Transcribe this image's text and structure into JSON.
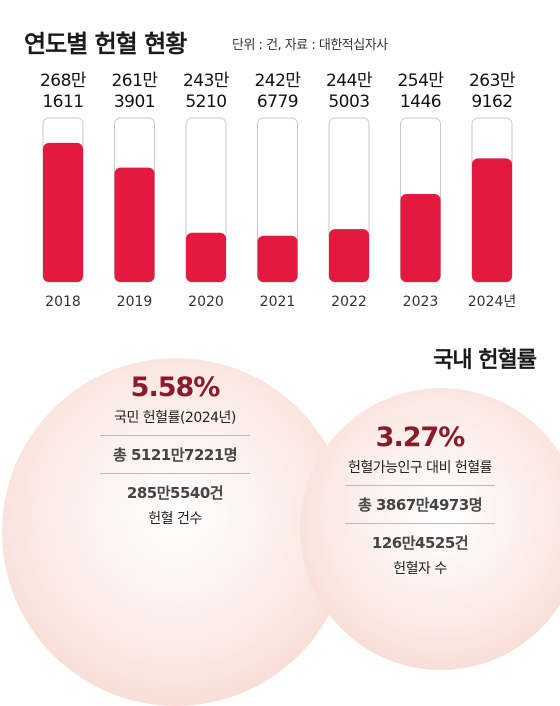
{
  "header": {
    "title": "연도별 헌혈 현황",
    "unit_note": "단위 : 건, 자료 : 대한적십자사"
  },
  "chart_data": {
    "type": "bar",
    "categories": [
      "2018",
      "2019",
      "2020",
      "2021",
      "2022",
      "2023",
      "2024년"
    ],
    "values": [
      2681611,
      2613901,
      2435210,
      2426779,
      2445003,
      2541446,
      2639162
    ],
    "value_labels": [
      [
        "268만",
        "1611"
      ],
      [
        "261만",
        "3901"
      ],
      [
        "243만",
        "5210"
      ],
      [
        "242만",
        "6779"
      ],
      [
        "244만",
        "5003"
      ],
      [
        "254만",
        "1446"
      ],
      [
        "263만",
        "9162"
      ]
    ],
    "bar_color": "#e3193f",
    "empty_color": "#ffffff",
    "outline_color": "#c9c9c9"
  },
  "section": {
    "title": "국내 헌혈률"
  },
  "stats": {
    "national": {
      "rate": "5.58%",
      "rate_label": "국민 헌혈률(2024년)",
      "population": "총 5121만7221명",
      "count": "285만5540건",
      "count_label": "헌혈 건수"
    },
    "eligible": {
      "rate": "3.27%",
      "rate_label": "헌혈가능인구 대비 헌혈률",
      "population": "총 3867만4973명",
      "count": "126만4525건",
      "count_label": "헌혈자 수"
    }
  },
  "colors": {
    "accent": "#8b1a2b",
    "circle_fill": "#f6d7cd"
  }
}
